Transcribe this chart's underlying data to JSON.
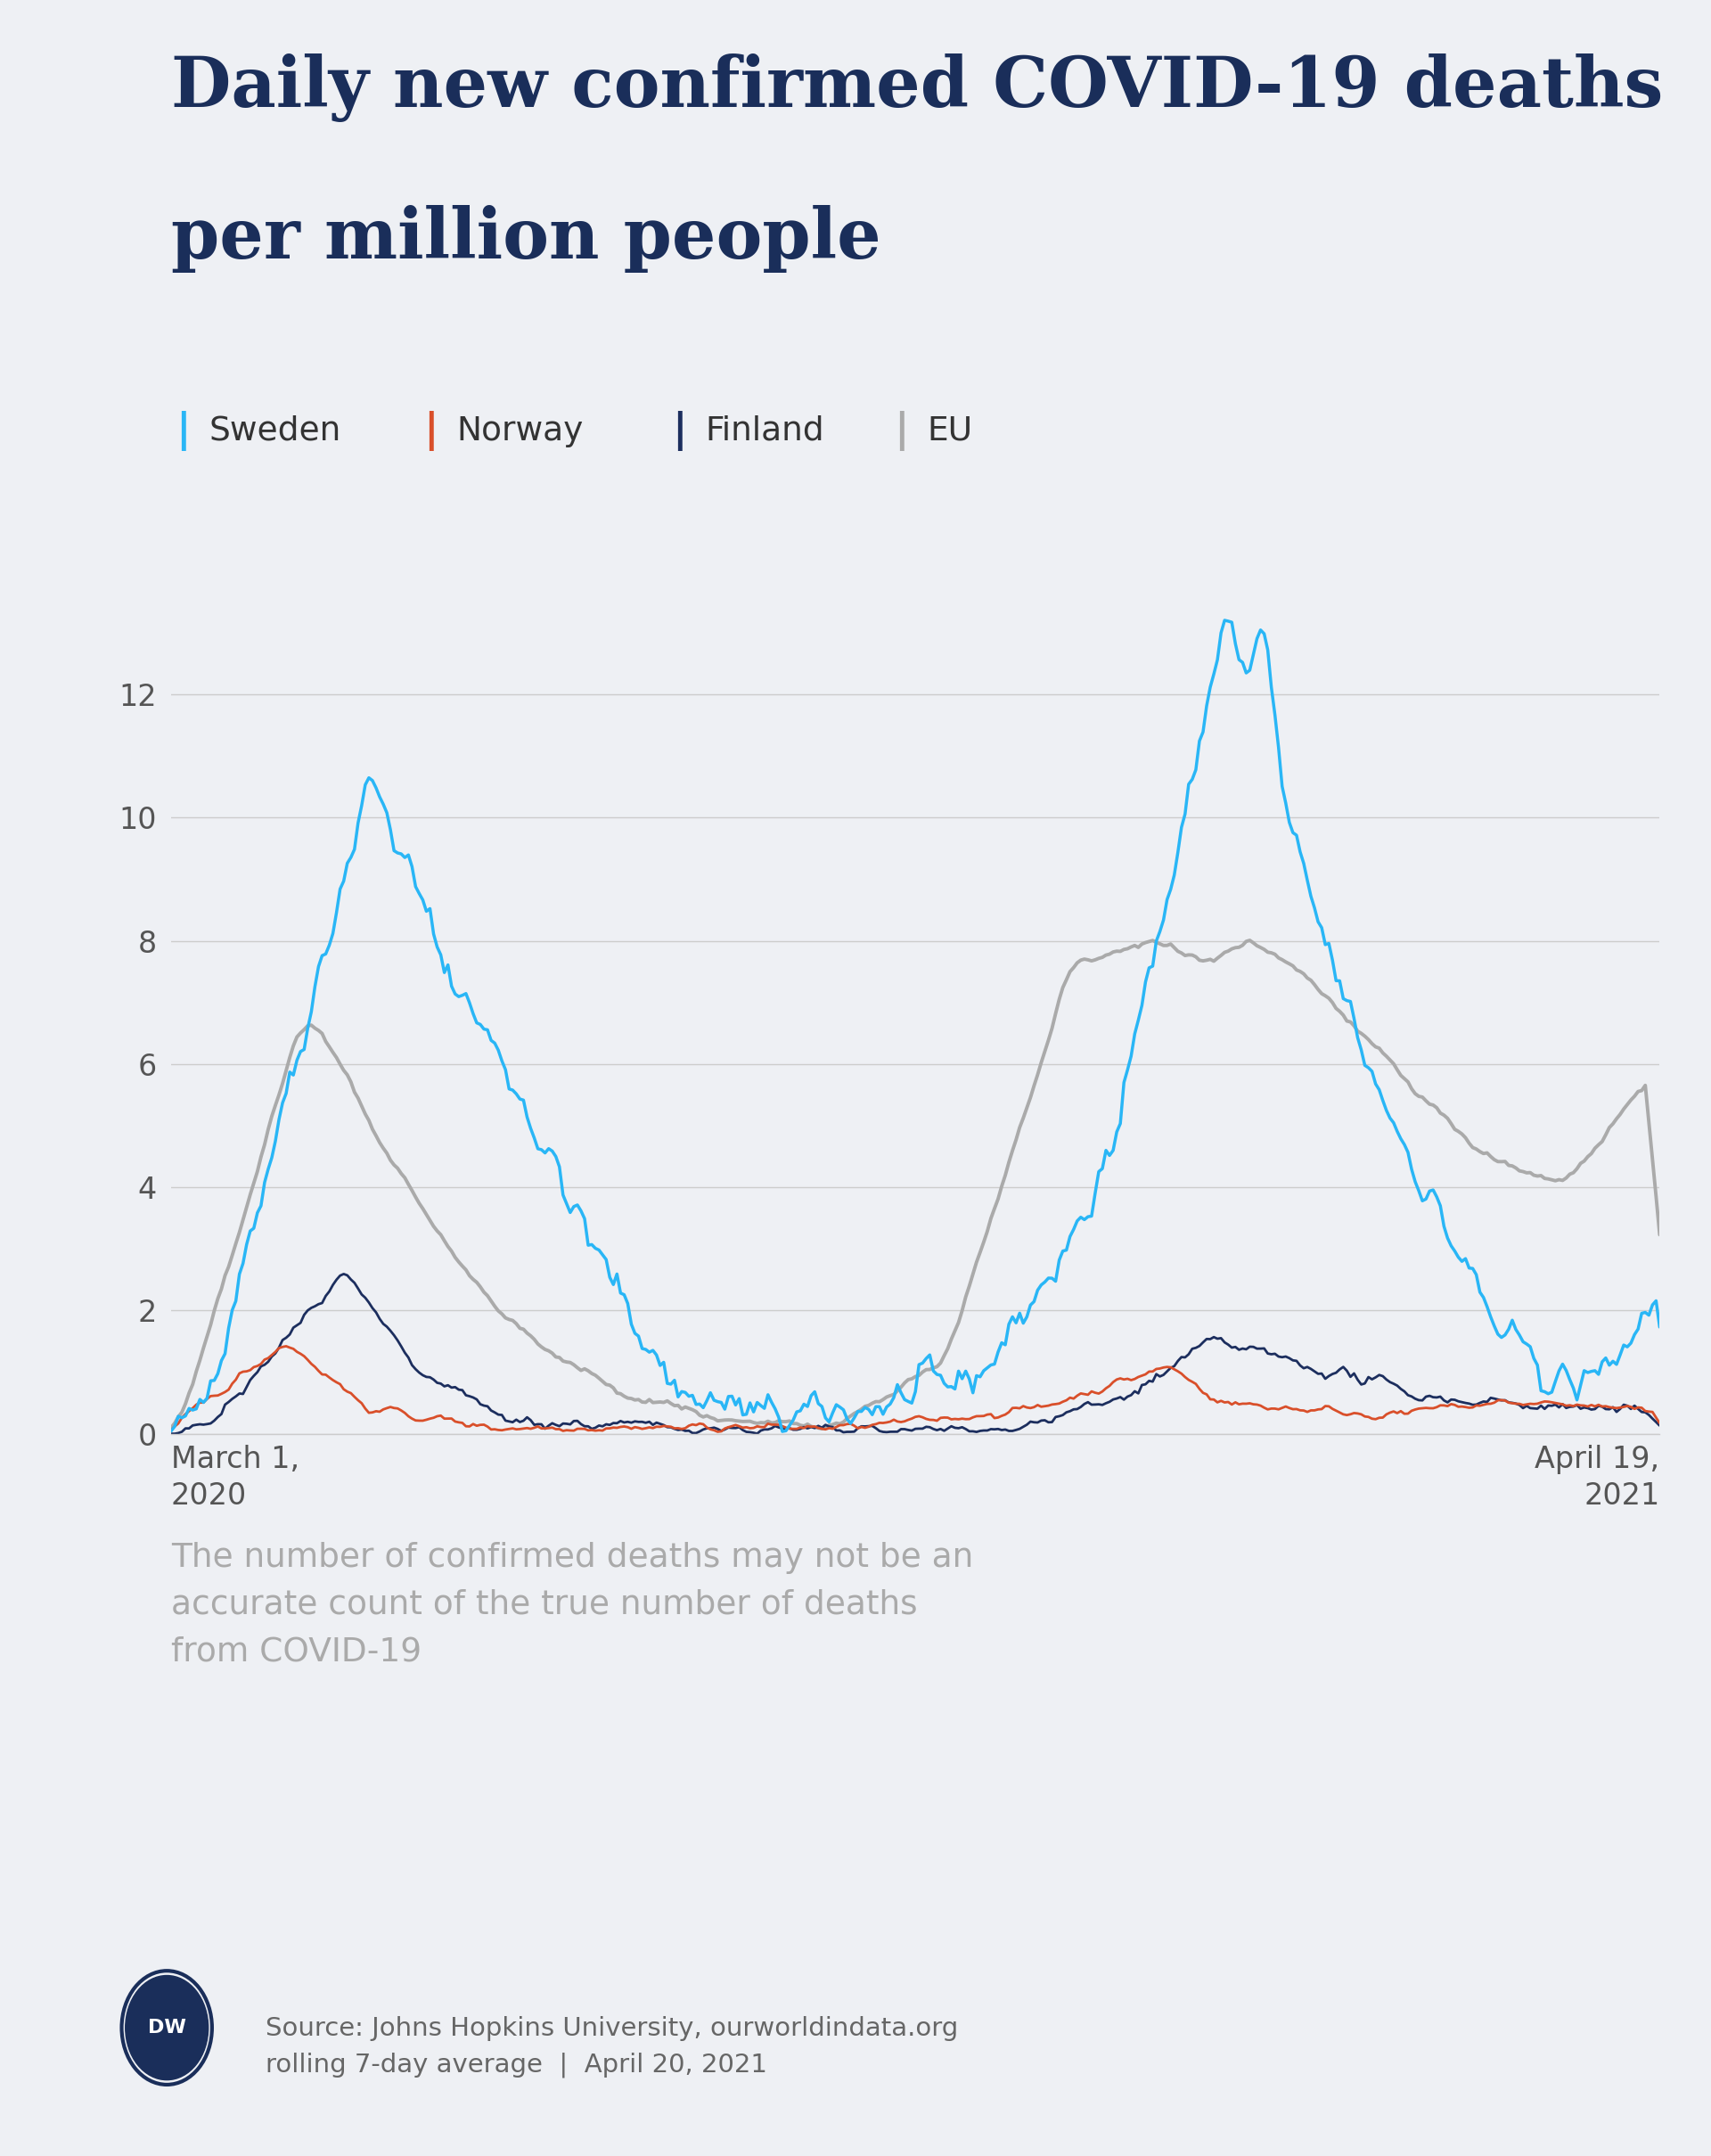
{
  "title_line1": "Daily new confirmed COVID-19 deaths",
  "title_line2": "per million people",
  "title_color": "#1a2e5a",
  "bg_color": "#eef0f4",
  "legend_entries": [
    "Sweden",
    "Norway",
    "Finland",
    "EU"
  ],
  "legend_colors": [
    "#29b6f6",
    "#d94f2a",
    "#1c2e5e",
    "#aaaaaa"
  ],
  "sweden_color": "#29b6f6",
  "norway_color": "#d94f2a",
  "finland_color": "#1c2e5e",
  "eu_color": "#aaaaaa",
  "ylim": [
    0,
    14
  ],
  "yticks": [
    0,
    2,
    4,
    6,
    8,
    10,
    12
  ],
  "xlabel_left": "March 1,\n2020",
  "xlabel_right": "April 19,\n2021",
  "footnote": "The number of confirmed deaths may not be an\naccurate count of the true number of deaths\nfrom COVID-19",
  "footnote_color": "#aaaaaa",
  "source_text": "Source: Johns Hopkins University, ourworldindata.org\nrolling 7-day average  |  April 20, 2021",
  "source_color": "#666666",
  "grid_color": "#cccccc",
  "axis_color": "#888888",
  "tick_color": "#555555"
}
